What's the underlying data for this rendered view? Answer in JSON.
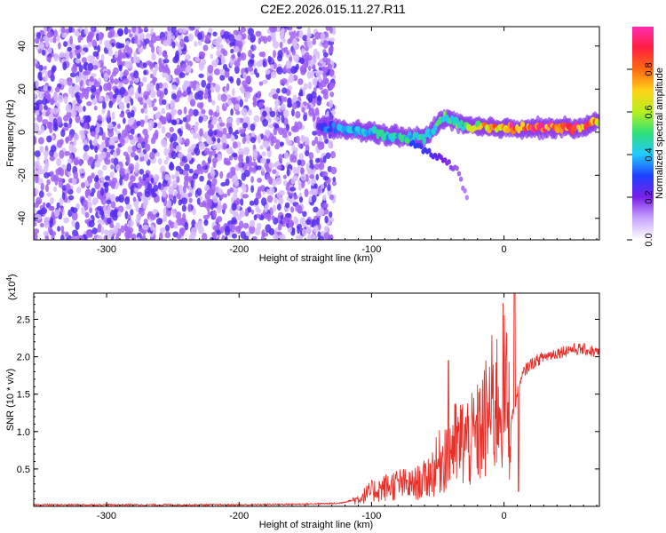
{
  "title": "C2E2.2026.015.11.27.R11",
  "colors": {
    "line": "#e8302a",
    "axis": "#000000",
    "colormap": [
      "#ffffff",
      "#c9a6ff",
      "#7a1fe8",
      "#1e40ff",
      "#22c8ff",
      "#2ee07a",
      "#b6f01e",
      "#ffd21a",
      "#ff6a10",
      "#ff2040",
      "#ff2cb0"
    ]
  },
  "chart_data": [
    {
      "type": "heatmap",
      "xlabel": "Height of straight line (km)",
      "ylabel": "Frequency (Hz)",
      "xlim": [
        -355,
        72
      ],
      "ylim": [
        -50,
        49
      ],
      "xticks": [
        -300,
        -200,
        -100,
        0
      ],
      "xtick_labels": [
        "-300",
        "-200",
        "-100",
        "0"
      ],
      "yticks": [
        -40,
        -20,
        0,
        20,
        40
      ],
      "ytick_labels": [
        "-40",
        "-20",
        "0",
        "20",
        "40"
      ],
      "colorbar": {
        "label": "Normalized spectral amplitude",
        "range": [
          0,
          1
        ],
        "ticks": [
          0.0,
          0.2,
          0.4,
          0.6,
          0.8
        ],
        "tick_labels": [
          "0.0",
          "0.2",
          "0.4",
          "0.6",
          "0.8"
        ]
      },
      "noise_region": {
        "x_range": [
          -355,
          -128
        ],
        "freq_range": [
          -50,
          49
        ],
        "amplitude": 0.15
      },
      "ridge": [
        {
          "x": -140,
          "freq": 3,
          "amp": 0.3
        },
        {
          "x": -120,
          "freq": 1,
          "amp": 0.4
        },
        {
          "x": -100,
          "freq": 0,
          "amp": 0.45
        },
        {
          "x": -80,
          "freq": -2,
          "amp": 0.45
        },
        {
          "x": -60,
          "freq": -3,
          "amp": 0.45
        },
        {
          "x": -45,
          "freq": 7,
          "amp": 0.5
        },
        {
          "x": -30,
          "freq": 3,
          "amp": 0.5
        },
        {
          "x": -15,
          "freq": 2,
          "amp": 0.7
        },
        {
          "x": 0,
          "freq": 2,
          "amp": 0.85
        },
        {
          "x": 20,
          "freq": 2,
          "amp": 0.9
        },
        {
          "x": 40,
          "freq": 2,
          "amp": 0.9
        },
        {
          "x": 60,
          "freq": 2,
          "amp": 0.85
        },
        {
          "x": 72,
          "freq": 5,
          "amp": 0.75
        }
      ],
      "secondary_branch": [
        {
          "x": -70,
          "freq": -5,
          "amp": 0.3
        },
        {
          "x": -55,
          "freq": -10,
          "amp": 0.25
        },
        {
          "x": -45,
          "freq": -13,
          "amp": 0.2
        },
        {
          "x": -35,
          "freq": -18,
          "amp": 0.15
        },
        {
          "x": -28,
          "freq": -31,
          "amp": 0.12
        }
      ]
    },
    {
      "type": "line",
      "xlabel": "Height of straight line (km)",
      "ylabel": "SNR (10 * v/v)",
      "yscale_label": "(x10",
      "yscale_exponent": "4",
      "yscale_close": ")",
      "xlim": [
        -355,
        72
      ],
      "ylim": [
        0,
        2.85
      ],
      "xticks": [
        -300,
        -200,
        -100,
        0
      ],
      "xtick_labels": [
        "-300",
        "-200",
        "-100",
        "0"
      ],
      "yticks": [
        0.5,
        1.0,
        1.5,
        2.0,
        2.5
      ],
      "ytick_labels": [
        "0.5",
        "1.0",
        "1.5",
        "2.0",
        "2.5"
      ],
      "series": [
        {
          "name": "SNR",
          "x": [
            -355,
            -300,
            -250,
            -200,
            -150,
            -125,
            -110,
            -100,
            -90,
            -80,
            -70,
            -60,
            -50,
            -45,
            -40,
            -35,
            -30,
            -25,
            -20,
            -15,
            -10,
            -5,
            0,
            5,
            10,
            15,
            20,
            30,
            40,
            50,
            60,
            72
          ],
          "y": [
            0.02,
            0.02,
            0.02,
            0.02,
            0.03,
            0.04,
            0.1,
            0.2,
            0.25,
            0.3,
            0.28,
            0.35,
            0.55,
            0.7,
            0.85,
            0.8,
            0.9,
            0.85,
            0.95,
            1.1,
            1.3,
            1.4,
            1.6,
            1.1,
            1.5,
            1.8,
            1.9,
            2.0,
            2.05,
            2.1,
            2.1,
            2.05
          ]
        }
      ],
      "peaks": [
        {
          "x": -42,
          "y": 1.95
        },
        {
          "x": 8,
          "y": 2.85
        },
        {
          "x": 11,
          "y": 0.2
        }
      ]
    }
  ]
}
